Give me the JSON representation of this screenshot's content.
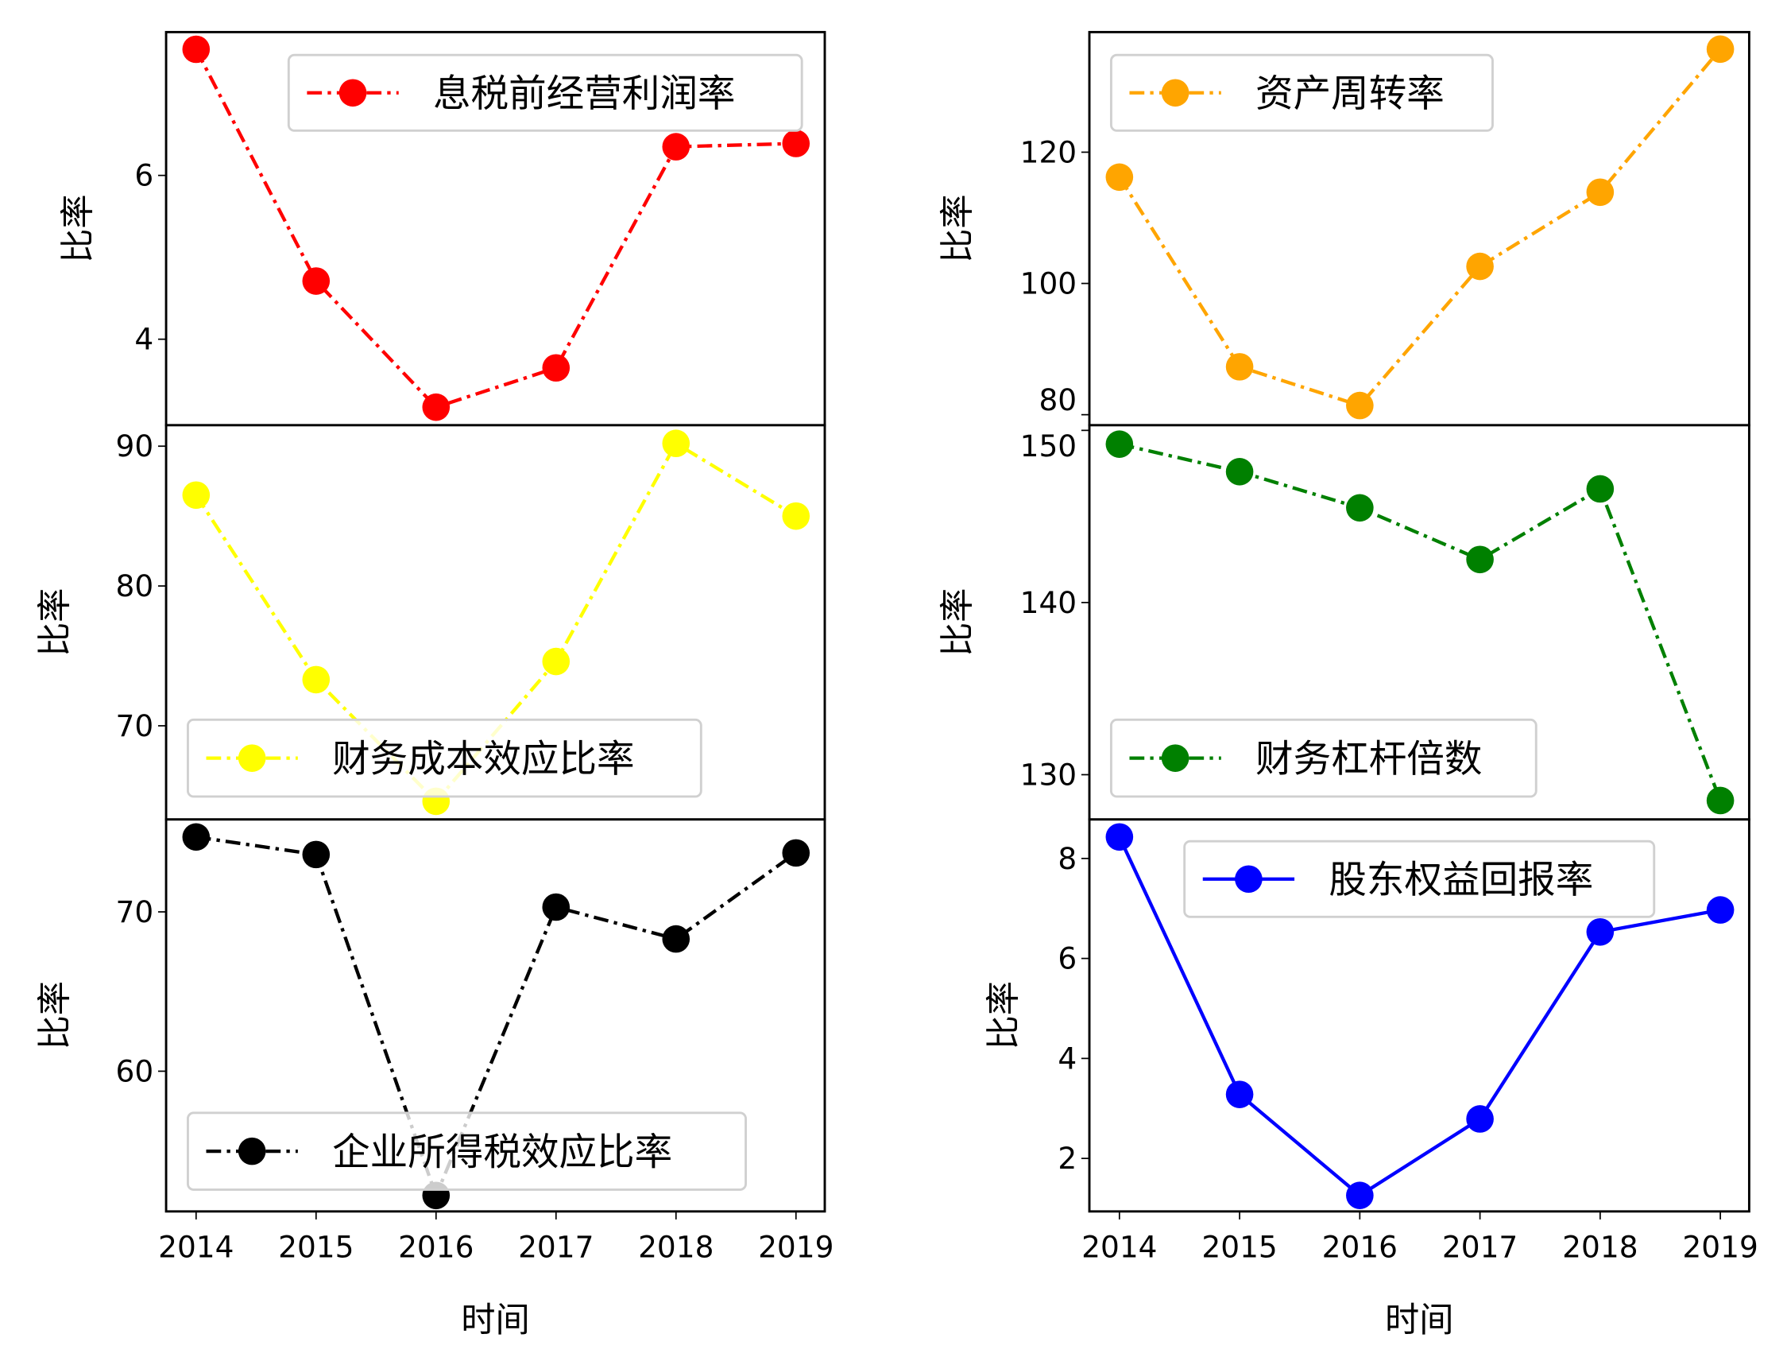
{
  "chart_data": [
    {
      "type": "line",
      "ylabel": "比率",
      "xlabel": "",
      "x": [
        2014,
        2015,
        2016,
        2017,
        2018,
        2019
      ],
      "xticks": [
        "2014",
        "2015",
        "2016",
        "2017",
        "2018",
        "2019"
      ],
      "yticks": [
        4,
        6
      ],
      "ylim": [
        2.95,
        7.75
      ],
      "xlim": [
        2013.75,
        2019.24
      ],
      "series": [
        {
          "name": "息税前经营利润率",
          "color": "#ff0000",
          "linestyle": "dash-dot",
          "marker": "circle",
          "values": [
            7.54,
            4.71,
            3.17,
            3.65,
            6.35,
            6.39
          ]
        }
      ],
      "legend": "upper-right"
    },
    {
      "type": "line",
      "ylabel": "比率",
      "xlabel": "",
      "x": [
        2014,
        2015,
        2016,
        2017,
        2018,
        2019
      ],
      "xticks": [
        "2014",
        "2015",
        "2016",
        "2017",
        "2018",
        "2019"
      ],
      "yticks": [
        80,
        100,
        120
      ],
      "ylim": [
        78.4,
        138.3
      ],
      "xlim": [
        2013.75,
        2019.24
      ],
      "series": [
        {
          "name": "资产周转率",
          "color": "#ffa500",
          "linestyle": "dash-dot",
          "marker": "circle",
          "values": [
            116.2,
            87.3,
            81.4,
            102.6,
            113.9,
            135.7
          ]
        }
      ],
      "legend": "upper-left"
    },
    {
      "type": "line",
      "ylabel": "比率",
      "xlabel": "",
      "x": [
        2014,
        2015,
        2016,
        2017,
        2018,
        2019
      ],
      "xticks": [
        "2014",
        "2015",
        "2016",
        "2017",
        "2018",
        "2019"
      ],
      "yticks": [
        70,
        80,
        90
      ],
      "ylim": [
        63.3,
        91.5
      ],
      "xlim": [
        2013.75,
        2019.24
      ],
      "series": [
        {
          "name": "财务成本效应比率",
          "color": "#ffff00",
          "linestyle": "dash-dot",
          "marker": "circle",
          "values": [
            86.5,
            73.3,
            64.6,
            74.6,
            90.2,
            85.0
          ]
        }
      ],
      "legend": "lower-left"
    },
    {
      "type": "line",
      "ylabel": "比率",
      "xlabel": "",
      "x": [
        2014,
        2015,
        2016,
        2017,
        2018,
        2019
      ],
      "xticks": [
        "2014",
        "2015",
        "2016",
        "2017",
        "2018",
        "2019"
      ],
      "yticks": [
        130,
        140,
        150
      ],
      "ylim": [
        127.4,
        150.3
      ],
      "xlim": [
        2013.75,
        2019.24
      ],
      "series": [
        {
          "name": "财务杠杆倍数",
          "color": "#008000",
          "linestyle": "dash-dot",
          "marker": "circle",
          "values": [
            149.2,
            147.6,
            145.5,
            142.5,
            146.6,
            128.5
          ]
        }
      ],
      "legend": "lower-left"
    },
    {
      "type": "line",
      "ylabel": "比率",
      "xlabel": "时间",
      "x": [
        2014,
        2015,
        2016,
        2017,
        2018,
        2019
      ],
      "xticks": [
        "2014",
        "2015",
        "2016",
        "2017",
        "2018",
        "2019"
      ],
      "yticks": [
        60,
        70
      ],
      "ylim": [
        51.2,
        75.8
      ],
      "xlim": [
        2013.75,
        2019.24
      ],
      "series": [
        {
          "name": "企业所得税效应比率",
          "color": "#000000",
          "linestyle": "dash-dot",
          "marker": "circle",
          "values": [
            74.7,
            73.6,
            52.2,
            70.3,
            68.3,
            73.7
          ]
        }
      ],
      "legend": "lower-left"
    },
    {
      "type": "line",
      "ylabel": "比率",
      "xlabel": "时间",
      "x": [
        2014,
        2015,
        2016,
        2017,
        2018,
        2019
      ],
      "xticks": [
        "2014",
        "2015",
        "2016",
        "2017",
        "2018",
        "2019"
      ],
      "yticks": [
        2,
        4,
        6,
        8
      ],
      "ylim": [
        0.94,
        8.78
      ],
      "xlim": [
        2013.75,
        2019.24
      ],
      "series": [
        {
          "name": "股东权益回报率",
          "color": "#0000ff",
          "linestyle": "solid",
          "marker": "circle",
          "values": [
            8.43,
            3.28,
            1.26,
            2.79,
            6.53,
            6.97
          ]
        }
      ],
      "legend": "upper-center"
    }
  ]
}
